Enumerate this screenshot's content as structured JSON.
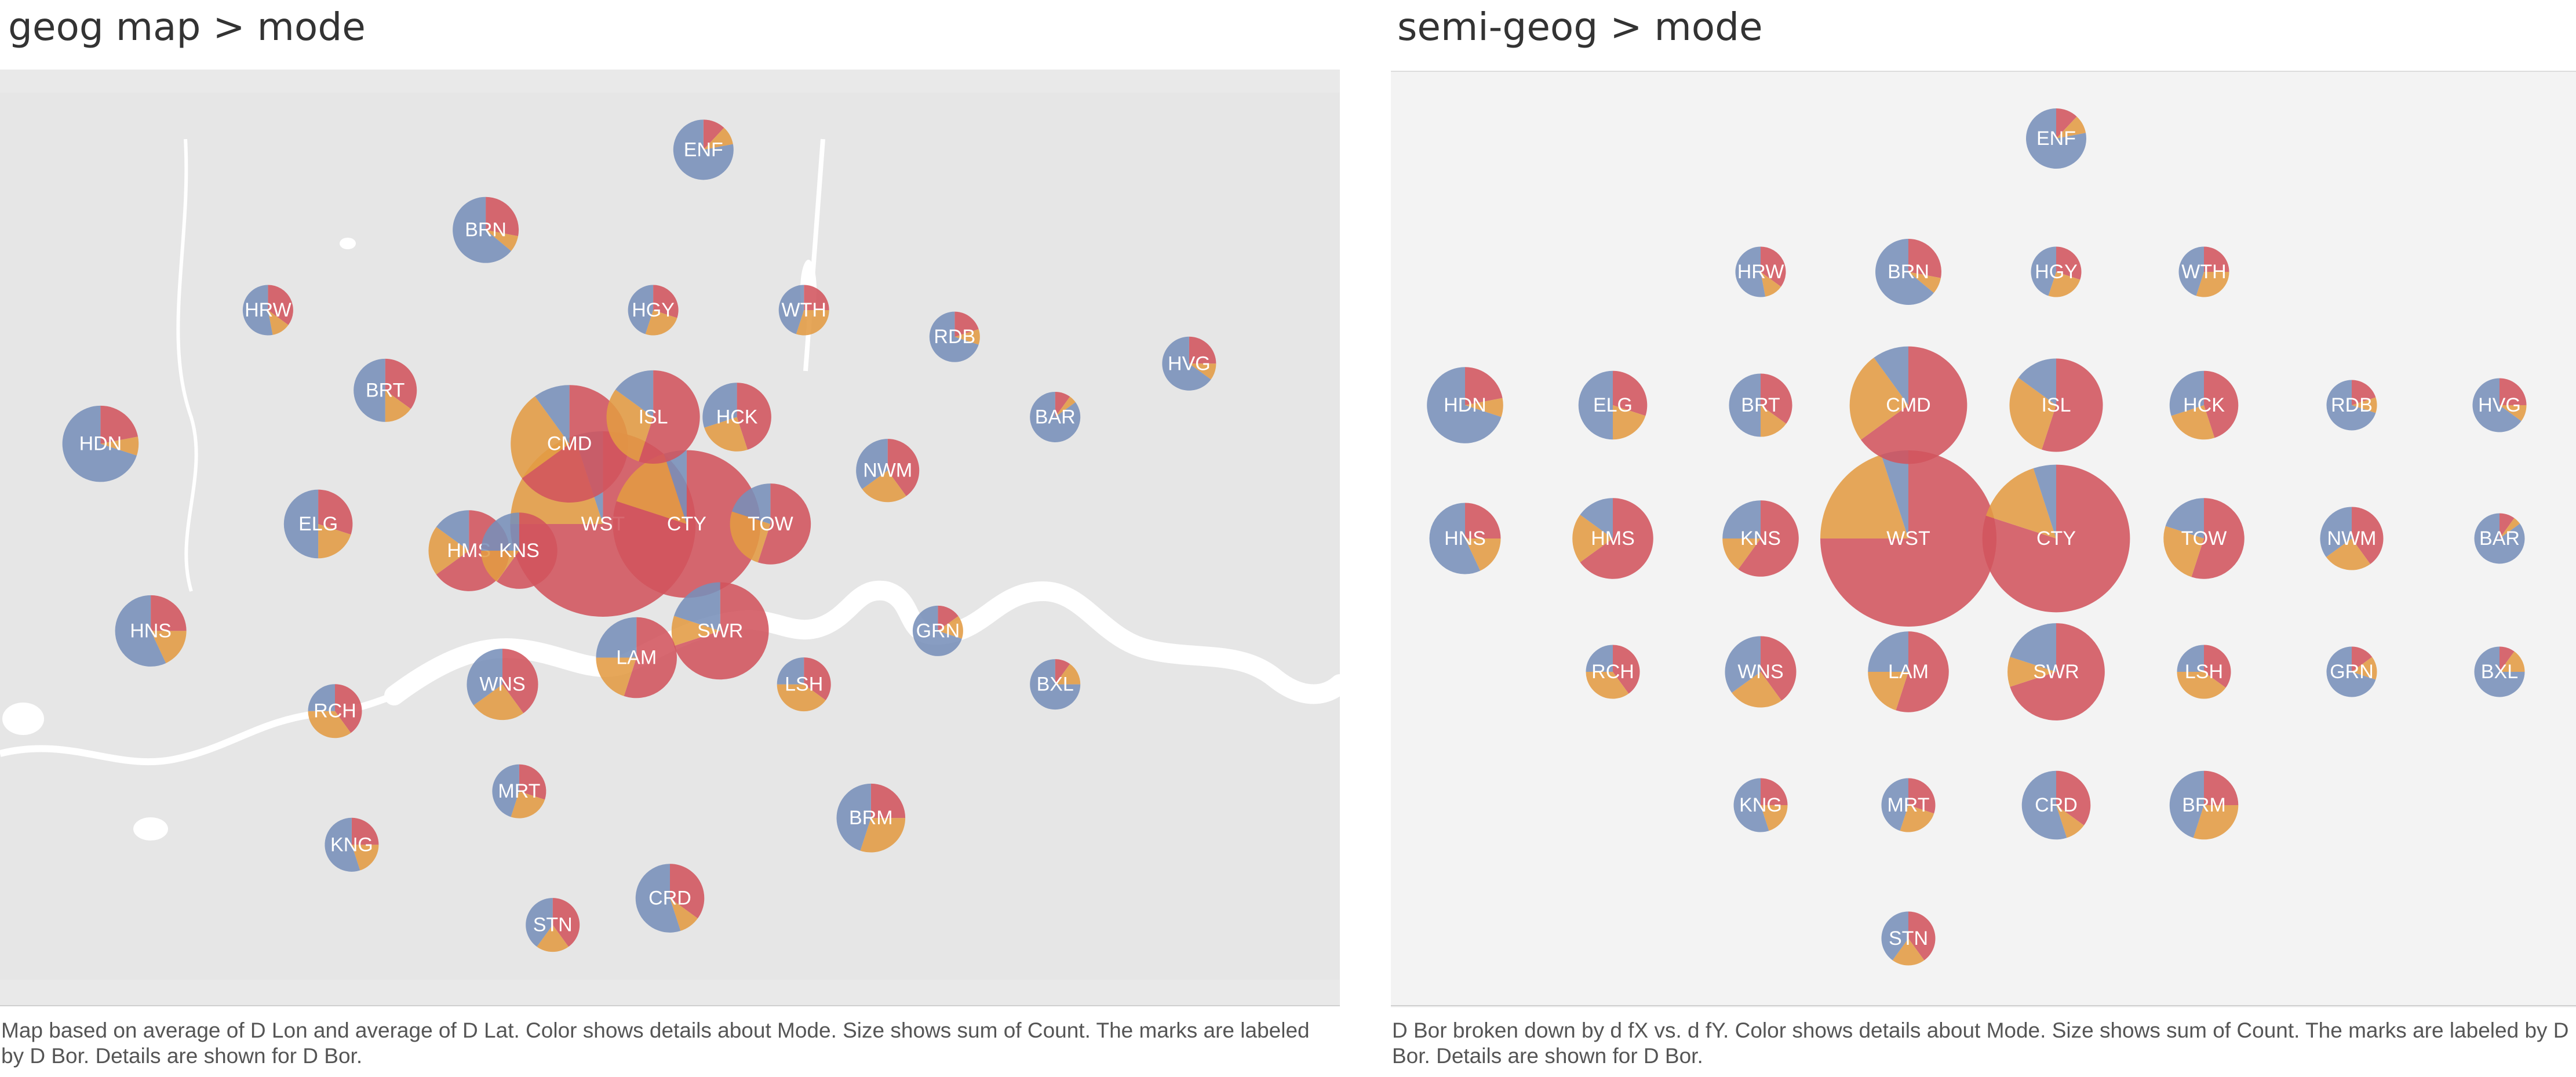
{
  "colors": {
    "red": "#d1545d",
    "orange": "#e39b43",
    "blue": "#7890ba"
  },
  "left_panel": {
    "title": "geog map > mode",
    "caption": "Map based on average of D Lon and average of D Lat.  Color shows details about Mode.  Size shows sum of Count.  The marks are labeled by D Bor.  Details are shown for D Bor."
  },
  "right_panel": {
    "title": "semi-geog > mode",
    "caption": "D Bor broken down by d fX vs. d fY.  Color shows details about Mode.  Size shows sum of Count.  The marks are labeled by D Bor.  Details are shown for D Bor."
  },
  "chart_data": [
    {
      "type": "pie-map",
      "series_colors": [
        "red",
        "orange",
        "blue"
      ],
      "boroughs": [
        {
          "label": "ENF",
          "count": 1,
          "lon": -0.08,
          "lat": 51.65,
          "gx": 5,
          "gy": 0,
          "modes": [
            12,
            10,
            78
          ]
        },
        {
          "label": "HRW",
          "count": 0.7,
          "lon": -0.34,
          "lat": 51.59,
          "gx": 3,
          "gy": 1,
          "modes": [
            35,
            12,
            53
          ]
        },
        {
          "label": "BRN",
          "count": 1.2,
          "lon": -0.21,
          "lat": 51.62,
          "gx": 4,
          "gy": 1,
          "modes": [
            28,
            8,
            64
          ]
        },
        {
          "label": "HGY",
          "count": 0.7,
          "lon": -0.11,
          "lat": 51.59,
          "gx": 5,
          "gy": 1,
          "modes": [
            30,
            25,
            45
          ]
        },
        {
          "label": "WTH",
          "count": 0.7,
          "lon": -0.02,
          "lat": 51.59,
          "gx": 6,
          "gy": 1,
          "modes": [
            25,
            30,
            45
          ]
        },
        {
          "label": "HDN",
          "count": 1.6,
          "lon": -0.44,
          "lat": 51.54,
          "gx": 1,
          "gy": 2,
          "modes": [
            22,
            8,
            70
          ]
        },
        {
          "label": "ELG",
          "count": 1.3,
          "lon": -0.31,
          "lat": 51.51,
          "gx": 2,
          "gy": 2,
          "modes": [
            30,
            20,
            50
          ]
        },
        {
          "label": "BRT",
          "count": 1.1,
          "lon": -0.27,
          "lat": 51.56,
          "gx": 3,
          "gy": 2,
          "modes": [
            35,
            15,
            50
          ]
        },
        {
          "label": "CMD",
          "count": 3.8,
          "lon": -0.16,
          "lat": 51.54,
          "gx": 4,
          "gy": 2,
          "modes": [
            65,
            25,
            10
          ]
        },
        {
          "label": "ISL",
          "count": 2.4,
          "lon": -0.11,
          "lat": 51.55,
          "gx": 5,
          "gy": 2,
          "modes": [
            55,
            30,
            15
          ]
        },
        {
          "label": "HCK",
          "count": 1.3,
          "lon": -0.06,
          "lat": 51.55,
          "gx": 6,
          "gy": 2,
          "modes": [
            45,
            25,
            30
          ]
        },
        {
          "label": "RDB",
          "count": 0.7,
          "lon": 0.07,
          "lat": 51.58,
          "gx": 7,
          "gy": 2,
          "modes": [
            20,
            10,
            70
          ]
        },
        {
          "label": "HVG",
          "count": 0.8,
          "lon": 0.21,
          "lat": 51.57,
          "gx": 8,
          "gy": 2,
          "modes": [
            25,
            10,
            65
          ]
        },
        {
          "label": "HNS",
          "count": 1.4,
          "lon": -0.41,
          "lat": 51.47,
          "gx": 1,
          "gy": 3,
          "modes": [
            25,
            18,
            57
          ]
        },
        {
          "label": "HMS",
          "count": 1.8,
          "lon": -0.22,
          "lat": 51.5,
          "gx": 2,
          "gy": 3,
          "modes": [
            65,
            20,
            15
          ]
        },
        {
          "label": "KNS",
          "count": 1.6,
          "lon": -0.19,
          "lat": 51.5,
          "gx": 3,
          "gy": 3,
          "modes": [
            60,
            15,
            25
          ]
        },
        {
          "label": "WST",
          "count": 11,
          "lon": -0.14,
          "lat": 51.51,
          "gx": 4,
          "gy": 3,
          "modes": [
            75,
            20,
            5
          ]
        },
        {
          "label": "CTY",
          "count": 6,
          "lon": -0.09,
          "lat": 51.51,
          "gx": 5,
          "gy": 3,
          "modes": [
            80,
            15,
            5
          ]
        },
        {
          "label": "TOW",
          "count": 1.8,
          "lon": -0.04,
          "lat": 51.51,
          "gx": 6,
          "gy": 3,
          "modes": [
            55,
            25,
            20
          ]
        },
        {
          "label": "NWM",
          "count": 1.1,
          "lon": 0.03,
          "lat": 51.53,
          "gx": 7,
          "gy": 3,
          "modes": [
            40,
            25,
            35
          ]
        },
        {
          "label": "BAR",
          "count": 0.7,
          "lon": 0.13,
          "lat": 51.55,
          "gx": 8,
          "gy": 3,
          "modes": [
            10,
            5,
            85
          ]
        },
        {
          "label": "RCH",
          "count": 0.8,
          "lon": -0.3,
          "lat": 51.44,
          "gx": 2,
          "gy": 4,
          "modes": [
            40,
            35,
            25
          ]
        },
        {
          "label": "WNS",
          "count": 1.4,
          "lon": -0.2,
          "lat": 51.45,
          "gx": 3,
          "gy": 4,
          "modes": [
            40,
            25,
            35
          ]
        },
        {
          "label": "LAM",
          "count": 1.8,
          "lon": -0.12,
          "lat": 51.46,
          "gx": 4,
          "gy": 4,
          "modes": [
            55,
            20,
            25
          ]
        },
        {
          "label": "SWR",
          "count": 2.6,
          "lon": -0.07,
          "lat": 51.47,
          "gx": 5,
          "gy": 4,
          "modes": [
            70,
            10,
            20
          ]
        },
        {
          "label": "LSH",
          "count": 0.8,
          "lon": -0.02,
          "lat": 51.45,
          "gx": 6,
          "gy": 4,
          "modes": [
            35,
            40,
            25
          ]
        },
        {
          "label": "GRN",
          "count": 0.7,
          "lon": 0.06,
          "lat": 51.47,
          "gx": 7,
          "gy": 4,
          "modes": [
            15,
            15,
            70
          ]
        },
        {
          "label": "BXL",
          "count": 0.7,
          "lon": 0.13,
          "lat": 51.45,
          "gx": 8,
          "gy": 4,
          "modes": [
            10,
            15,
            75
          ]
        },
        {
          "label": "KNG",
          "count": 0.8,
          "lon": -0.29,
          "lat": 51.39,
          "gx": 3,
          "gy": 5,
          "modes": [
            25,
            20,
            55
          ]
        },
        {
          "label": "MRT",
          "count": 0.8,
          "lon": -0.19,
          "lat": 51.41,
          "gx": 4,
          "gy": 5,
          "modes": [
            30,
            25,
            45
          ]
        },
        {
          "label": "CRD",
          "count": 1.3,
          "lon": -0.1,
          "lat": 51.37,
          "gx": 5,
          "gy": 5,
          "modes": [
            35,
            10,
            55
          ]
        },
        {
          "label": "BRM",
          "count": 1.3,
          "lon": 0.02,
          "lat": 51.4,
          "gx": 6,
          "gy": 5,
          "modes": [
            25,
            30,
            45
          ]
        },
        {
          "label": "STN",
          "count": 0.8,
          "lon": -0.17,
          "lat": 51.36,
          "gx": 4,
          "gy": 6,
          "modes": [
            40,
            20,
            40
          ]
        }
      ],
      "legend": "none",
      "grid": false
    }
  ]
}
